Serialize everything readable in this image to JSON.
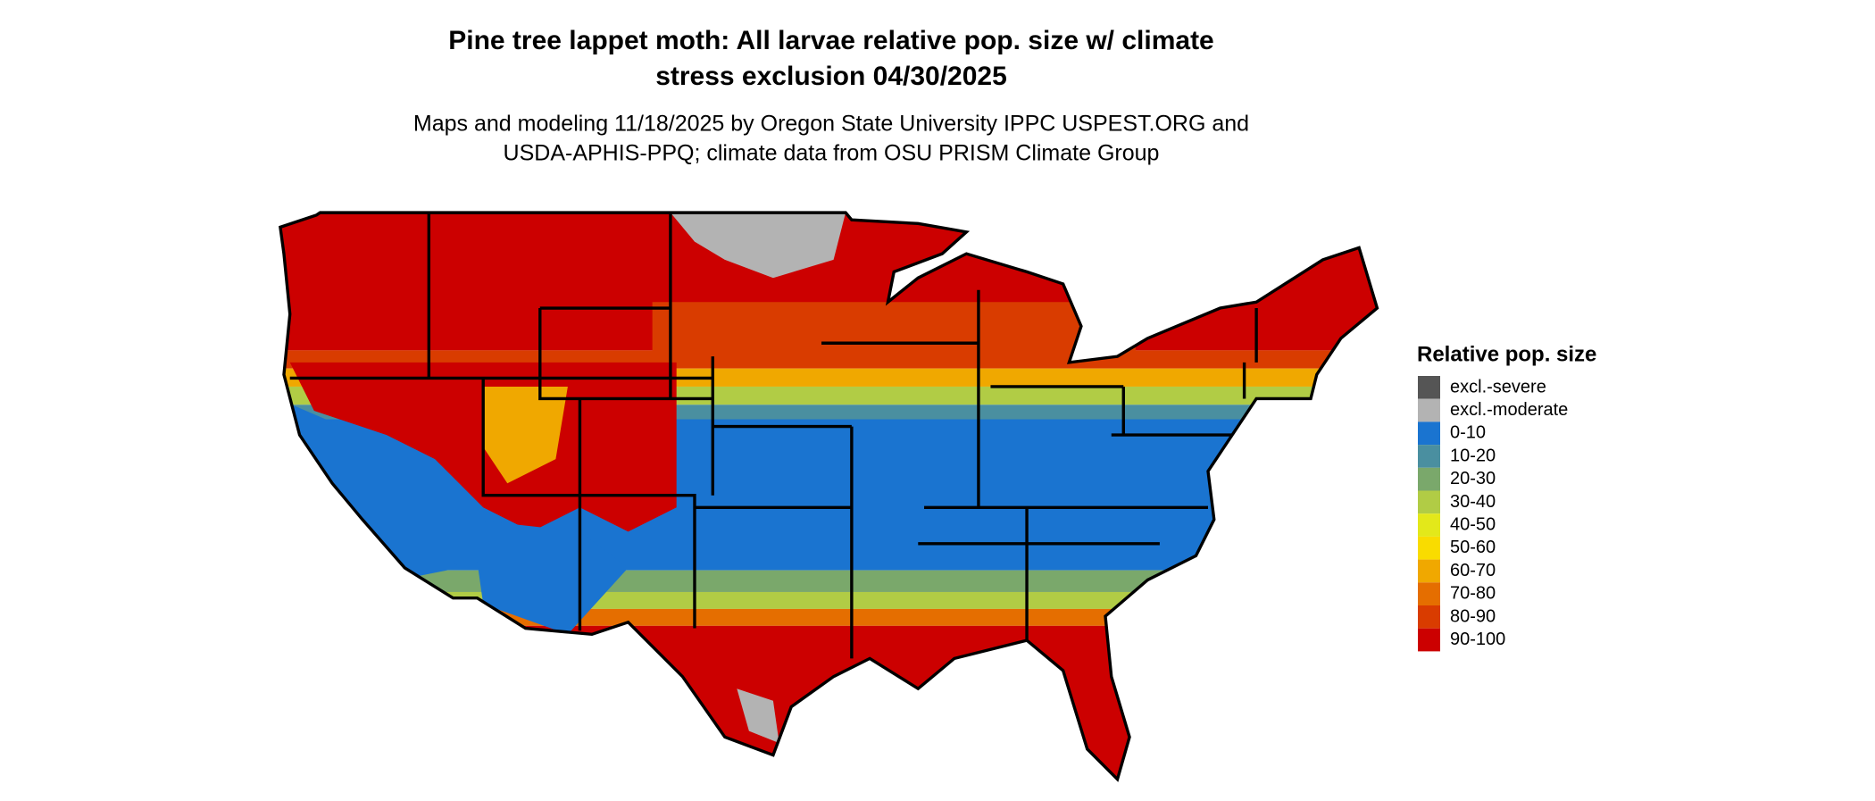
{
  "header": {
    "title": [
      "Pine tree lappet moth: All larvae relative pop. size w/ climate",
      "stress exclusion 04/30/2025"
    ],
    "subtitle": [
      "Maps and modeling 11/18/2025 by Oregon State University IPPC USPEST.ORG and",
      "USDA-APHIS-PPQ; climate data from OSU PRISM Climate Group"
    ]
  },
  "legend": {
    "title": "Relative pop. size",
    "items": [
      {
        "label": "excl.-severe",
        "color": "#555555"
      },
      {
        "label": "excl.-moderate",
        "color": "#b3b3b3"
      },
      {
        "label": "0-10",
        "color": "#1a74d0"
      },
      {
        "label": "10-20",
        "color": "#4a8fa0"
      },
      {
        "label": "20-30",
        "color": "#7aa86b"
      },
      {
        "label": "30-40",
        "color": "#b1cc45"
      },
      {
        "label": "40-50",
        "color": "#e3e81a"
      },
      {
        "label": "50-60",
        "color": "#f9dc00"
      },
      {
        "label": "60-70",
        "color": "#f0a800"
      },
      {
        "label": "70-80",
        "color": "#e56e00"
      },
      {
        "label": "80-90",
        "color": "#d93c00"
      },
      {
        "label": "90-100",
        "color": "#cc0000"
      }
    ]
  }
}
